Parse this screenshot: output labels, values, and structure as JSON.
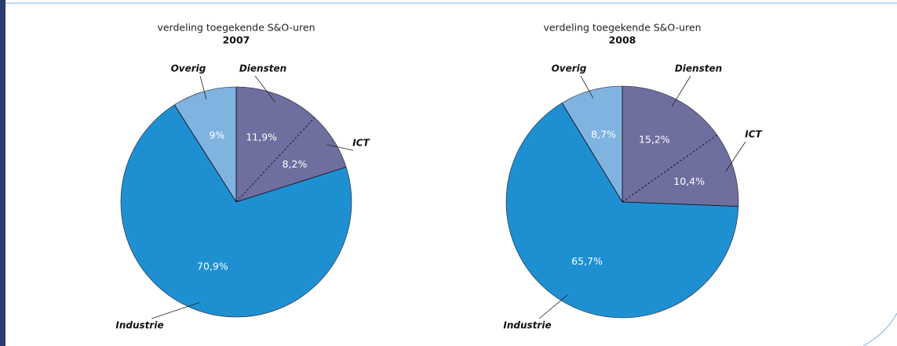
{
  "chart_data": [
    {
      "type": "pie",
      "title": "verdeling toegekende S&O-uren",
      "subtitle": "2007",
      "categories": [
        "Diensten",
        "ICT",
        "Industrie",
        "Overig"
      ],
      "values": [
        11.9,
        8.2,
        70.9,
        9
      ],
      "value_labels": [
        "11,9%",
        "8,2%",
        "70,9%",
        "9%"
      ],
      "colors": [
        "#6e6e9f",
        "#6e6e9f",
        "#1e90d2",
        "#80b3e0"
      ]
    },
    {
      "type": "pie",
      "title": "verdeling toegekende S&O-uren",
      "subtitle": "2008",
      "categories": [
        "Diensten",
        "ICT",
        "Industrie",
        "Overig"
      ],
      "values": [
        15.2,
        10.4,
        65.7,
        8.7
      ],
      "value_labels": [
        "15,2%",
        "10,4%",
        "65,7%",
        "8,7%"
      ],
      "colors": [
        "#6e6e9f",
        "#6e6e9f",
        "#1e90d2",
        "#80b3e0"
      ]
    }
  ]
}
